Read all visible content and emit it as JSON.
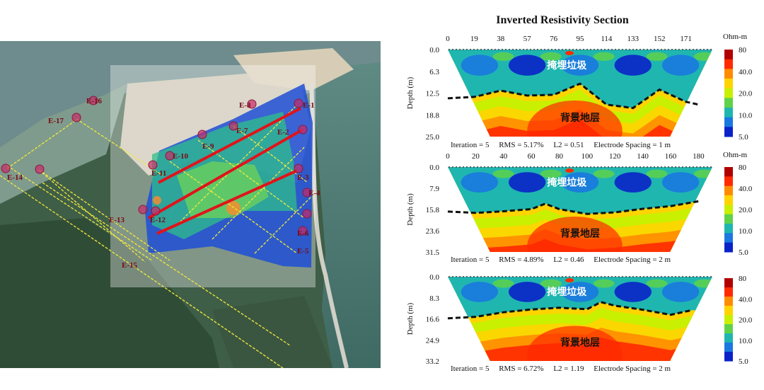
{
  "map": {
    "electrode_labels": [
      "E-1",
      "E-2",
      "E-3",
      "E-4",
      "E-5",
      "E-6",
      "E-7",
      "E-8",
      "E-9",
      "E-10",
      "E-11",
      "E-12",
      "E-13",
      "E-14",
      "E-15",
      "E-16",
      "E-17"
    ]
  },
  "title": "Inverted Resistivity Section",
  "colorbar": {
    "unit": "Ohm-m",
    "ticks": [
      "80",
      "40.0",
      "20.0",
      "10.0",
      "5.0"
    ],
    "colors": [
      "#b00000",
      "#ff2a00",
      "#ff8c00",
      "#ffd400",
      "#c8f000",
      "#5fd24a",
      "#1fb6b0",
      "#1a78e0",
      "#0a22c8"
    ]
  },
  "colors": {
    "boundary": "#111111",
    "tick_dot": "#555555"
  },
  "chart_data": [
    {
      "type": "heatmap",
      "x_ticks": [
        "0",
        "19",
        "38",
        "57",
        "76",
        "95",
        "114",
        "133",
        "152",
        "171"
      ],
      "x_range": [
        0,
        190
      ],
      "depth_ticks": [
        "0.0",
        "6.3",
        "12.5",
        "18.8",
        "25.0"
      ],
      "ylabel": "Depth (m)",
      "labels": {
        "waste": "掩埋垃圾",
        "background": "背景地层"
      },
      "stats": "Iteration = 5     RMS = 5.17%     L2 = 0.51     Electrode Spacing = 1 m",
      "boundary_x": [
        0,
        19,
        38,
        57,
        76,
        95,
        114,
        133,
        152,
        171,
        180
      ],
      "boundary_depth": [
        14.0,
        13.6,
        11.8,
        13.2,
        13.0,
        9.8,
        15.8,
        16.8,
        11.5,
        15.0,
        15.8
      ]
    },
    {
      "type": "heatmap",
      "x_ticks": [
        "0",
        "20",
        "40",
        "60",
        "80",
        "100",
        "120",
        "140",
        "160",
        "180"
      ],
      "x_range": [
        0,
        190
      ],
      "depth_ticks": [
        "0.0",
        "7.9",
        "15.8",
        "23.6",
        "31.5"
      ],
      "ylabel": "Depth (m)",
      "labels": {
        "waste": "掩埋垃圾",
        "background": "背景地层"
      },
      "stats": "Iteration = 5     RMS = 4.89%     L2 = 0.46     Electrode Spacing = 2 m",
      "boundary_x": [
        0,
        20,
        40,
        60,
        70,
        80,
        100,
        120,
        140,
        160,
        180
      ],
      "boundary_depth": [
        16.5,
        17.0,
        16.4,
        15.6,
        13.6,
        15.6,
        17.4,
        16.8,
        15.5,
        14.5,
        12.7
      ]
    },
    {
      "type": "heatmap",
      "x_ticks": [],
      "x_range": [
        0,
        190
      ],
      "depth_ticks": [
        "0.0",
        "8.3",
        "16.6",
        "24.9",
        "33.2"
      ],
      "ylabel": "Depth (m)",
      "labels": {
        "waste": "掩埋垃圾",
        "background": "背景地层"
      },
      "stats": "Iteration = 5     RMS = 6.72%     L2 = 1.19     Electrode Spacing = 2 m",
      "boundary_x": [
        0,
        20,
        40,
        60,
        80,
        100,
        110,
        120,
        140,
        160,
        175
      ],
      "boundary_depth": [
        16.4,
        15.8,
        14.0,
        12.9,
        12.2,
        12.8,
        10.0,
        11.4,
        13.0,
        15.0,
        13.2
      ]
    }
  ]
}
